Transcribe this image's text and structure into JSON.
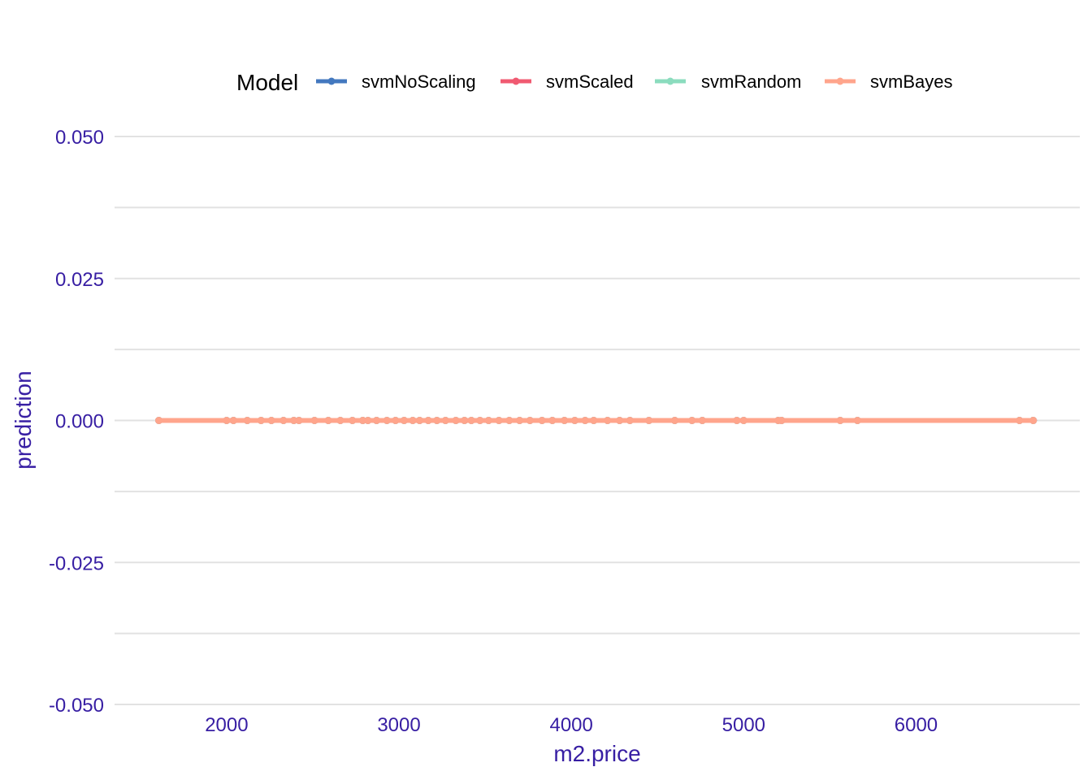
{
  "chart_data": {
    "type": "line",
    "xlabel": "m2.price",
    "ylabel": "prediction",
    "xlim": [
      1350,
      6950
    ],
    "ylim": [
      -0.05,
      0.05
    ],
    "x_ticks": [
      2000,
      3000,
      4000,
      5000,
      6000
    ],
    "x_tick_labels": [
      "2000",
      "3000",
      "4000",
      "5000",
      "6000"
    ],
    "y_ticks": [
      -0.05,
      -0.025,
      0,
      0.025,
      0.05
    ],
    "y_tick_labels": [
      "-0.050",
      "-0.025",
      "0.000",
      "0.025",
      "0.050"
    ],
    "grid": true,
    "legend": {
      "title": "Model",
      "placement": "top"
    },
    "x": [
      1607,
      2000,
      2040,
      2120,
      2200,
      2260,
      2330,
      2390,
      2420,
      2510,
      2590,
      2660,
      2730,
      2790,
      2820,
      2870,
      2930,
      2980,
      3030,
      3080,
      3120,
      3170,
      3220,
      3270,
      3330,
      3380,
      3420,
      3470,
      3520,
      3580,
      3640,
      3700,
      3760,
      3830,
      3890,
      3960,
      4020,
      4080,
      4130,
      4210,
      4280,
      4340,
      4450,
      4600,
      4700,
      4760,
      4960,
      5000,
      5200,
      5220,
      5560,
      5660,
      6600,
      6680
    ],
    "series": [
      {
        "name": "svmNoScaling",
        "color": "#4378bf",
        "y_constant": 0
      },
      {
        "name": "svmScaled",
        "color": "#f05a71",
        "y_constant": 0
      },
      {
        "name": "svmRandom",
        "color": "#8bdcbe",
        "y_constant": 0
      },
      {
        "name": "svmBayes",
        "color": "#ffa58c",
        "y_constant": 0
      }
    ]
  }
}
